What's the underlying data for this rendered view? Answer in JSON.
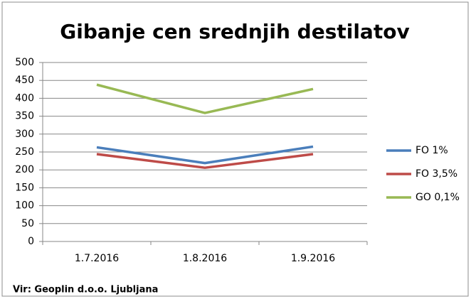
{
  "chart_data": {
    "type": "line",
    "title": "Gibanje cen srednjih destilatov",
    "categories": [
      "1.7.2016",
      "1.8.2016",
      "1.9.2016"
    ],
    "series": [
      {
        "name": "FO 1%",
        "color": "#4a7ebb",
        "values": [
          263,
          219,
          265
        ]
      },
      {
        "name": "FO 3,5%",
        "color": "#be4b48",
        "values": [
          244,
          206,
          244
        ]
      },
      {
        "name": "GO 0,1%",
        "color": "#98b954",
        "values": [
          438,
          359,
          426
        ]
      }
    ],
    "ylim": [
      0,
      500
    ],
    "yticks": [
      0,
      50,
      100,
      150,
      200,
      250,
      300,
      350,
      400,
      450,
      500
    ],
    "grid": true,
    "legend": "right",
    "source": "Vir: Geoplin d.o.o. Ljubljana"
  }
}
